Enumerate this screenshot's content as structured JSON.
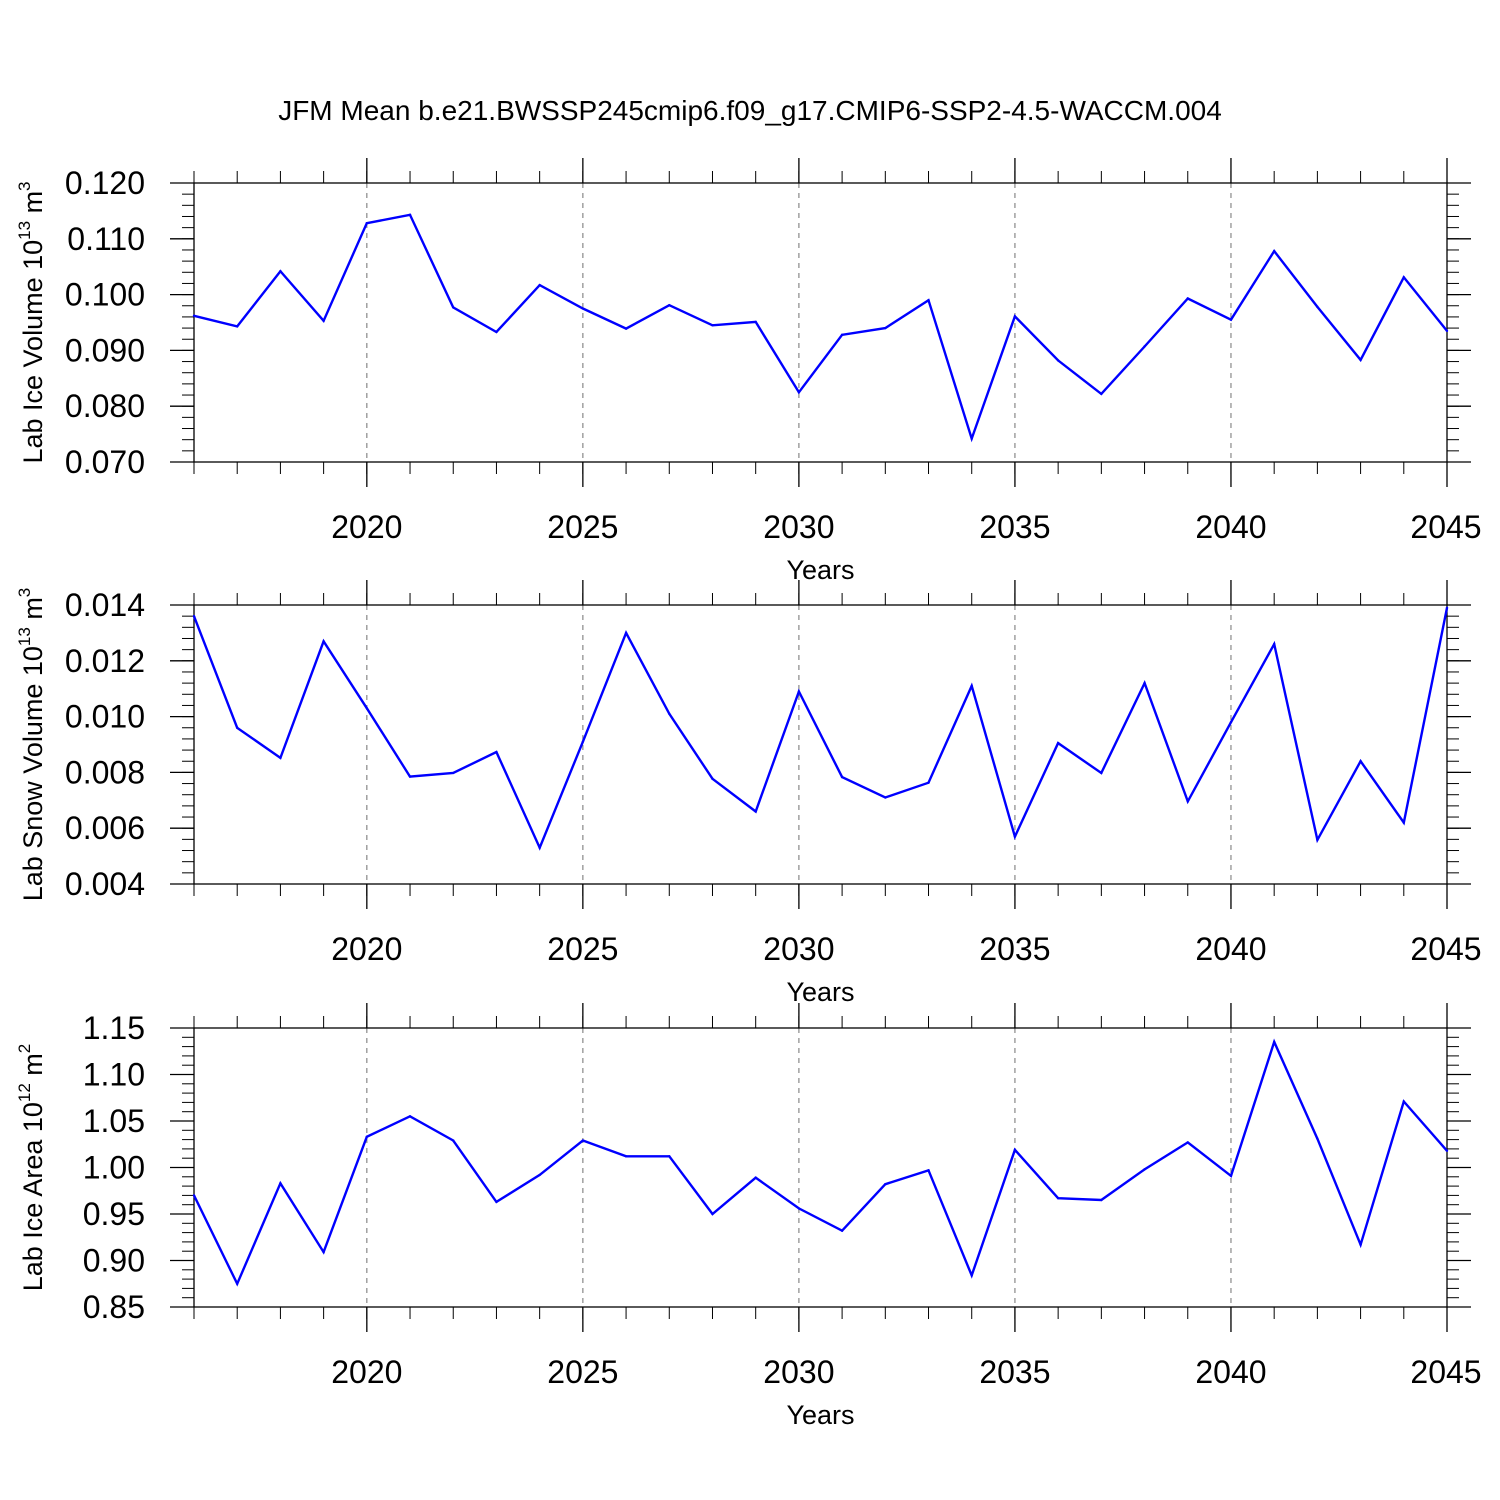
{
  "title": "JFM Mean b.e21.BWSSP245cmip6.f09_g17.CMIP6-SSP2-4.5-WACCM.004",
  "chart_data": [
    {
      "type": "line",
      "ylabel_main": "Lab Ice Volume 10",
      "ylabel_exp": "13",
      "ylabel_unit": " m",
      "ylabel_unit_exp": "3",
      "xlabel": "Years",
      "xlim": [
        2016,
        2045
      ],
      "ylim": [
        0.07,
        0.12
      ],
      "yticks": [
        0.07,
        0.08,
        0.09,
        0.1,
        0.11,
        0.12
      ],
      "ytick_labels": [
        "0.070",
        "0.080",
        "0.090",
        "0.100",
        "0.110",
        "0.120"
      ],
      "yminor_step": 0.002,
      "xticks": [
        2020,
        2025,
        2030,
        2035,
        2040,
        2045
      ],
      "xtick_labels": [
        "2020",
        "2025",
        "2030",
        "2035",
        "2040",
        "2045"
      ],
      "grid": "dashed vertical at major x ticks",
      "color": "#0000ff",
      "x": [
        2016,
        2017,
        2018,
        2019,
        2020,
        2021,
        2022,
        2023,
        2024,
        2025,
        2026,
        2027,
        2028,
        2029,
        2030,
        2031,
        2032,
        2033,
        2034,
        2035,
        2036,
        2037,
        2038,
        2039,
        2040,
        2041,
        2042,
        2043,
        2044,
        2045
      ],
      "values": [
        0.0962,
        0.0943,
        0.1042,
        0.0953,
        0.1128,
        0.1143,
        0.0977,
        0.0933,
        0.1017,
        0.0975,
        0.0939,
        0.0981,
        0.0945,
        0.0951,
        0.0825,
        0.0928,
        0.094,
        0.099,
        0.0742,
        0.0961,
        0.0882,
        0.0822,
        0.0907,
        0.0993,
        0.0955,
        0.1078,
        0.0978,
        0.0883,
        0.1031,
        0.0935
      ]
    },
    {
      "type": "line",
      "ylabel_main": "Lab Snow Volume 10",
      "ylabel_exp": "13",
      "ylabel_unit": " m",
      "ylabel_unit_exp": "3",
      "xlabel": "Years",
      "xlim": [
        2016,
        2045
      ],
      "ylim": [
        0.004,
        0.014
      ],
      "yticks": [
        0.004,
        0.006,
        0.008,
        0.01,
        0.012,
        0.014
      ],
      "ytick_labels": [
        "0.004",
        "0.006",
        "0.008",
        "0.010",
        "0.012",
        "0.014"
      ],
      "yminor_step": 0.0004,
      "xticks": [
        2020,
        2025,
        2030,
        2035,
        2040,
        2045
      ],
      "xtick_labels": [
        "2020",
        "2025",
        "2030",
        "2035",
        "2040",
        "2045"
      ],
      "grid": "dashed vertical at major x ticks",
      "color": "#0000ff",
      "x": [
        2016,
        2017,
        2018,
        2019,
        2020,
        2021,
        2022,
        2023,
        2024,
        2025,
        2026,
        2027,
        2028,
        2029,
        2030,
        2031,
        2032,
        2033,
        2034,
        2035,
        2036,
        2037,
        2038,
        2039,
        2040,
        2041,
        2042,
        2043,
        2044,
        2045
      ],
      "values": [
        0.0136,
        0.0096,
        0.00852,
        0.0127,
        0.0103,
        0.00785,
        0.00798,
        0.00873,
        0.0053,
        0.0091,
        0.013,
        0.0101,
        0.00777,
        0.0066,
        0.0109,
        0.00783,
        0.0071,
        0.00763,
        0.0111,
        0.0057,
        0.00905,
        0.00798,
        0.0112,
        0.00696,
        0.0098,
        0.0126,
        0.00558,
        0.0084,
        0.0062,
        0.0139
      ]
    },
    {
      "type": "line",
      "ylabel_main": "Lab Ice Area 10",
      "ylabel_exp": "12",
      "ylabel_unit": " m",
      "ylabel_unit_exp": "2",
      "xlabel": "Years",
      "xlim": [
        2016,
        2045
      ],
      "ylim": [
        0.85,
        1.15
      ],
      "yticks": [
        0.85,
        0.9,
        0.95,
        1.0,
        1.05,
        1.1,
        1.15
      ],
      "ytick_labels": [
        "0.85",
        "0.90",
        "0.95",
        "1.00",
        "1.05",
        "1.10",
        "1.15"
      ],
      "yminor_step": 0.01,
      "xticks": [
        2020,
        2025,
        2030,
        2035,
        2040,
        2045
      ],
      "xtick_labels": [
        "2020",
        "2025",
        "2030",
        "2035",
        "2040",
        "2045"
      ],
      "grid": "dashed vertical at major x ticks",
      "color": "#0000ff",
      "x": [
        2016,
        2017,
        2018,
        2019,
        2020,
        2021,
        2022,
        2023,
        2024,
        2025,
        2026,
        2027,
        2028,
        2029,
        2030,
        2031,
        2032,
        2033,
        2034,
        2035,
        2036,
        2037,
        2038,
        2039,
        2040,
        2041,
        2042,
        2043,
        2044,
        2045
      ],
      "values": [
        0.97,
        0.875,
        0.983,
        0.909,
        1.033,
        1.055,
        1.029,
        0.963,
        0.992,
        1.029,
        1.012,
        1.012,
        0.95,
        0.989,
        0.956,
        0.932,
        0.982,
        0.997,
        0.884,
        1.019,
        0.967,
        0.965,
        0.998,
        1.027,
        0.991,
        1.135,
        1.031,
        0.917,
        1.071,
        1.018
      ]
    }
  ]
}
